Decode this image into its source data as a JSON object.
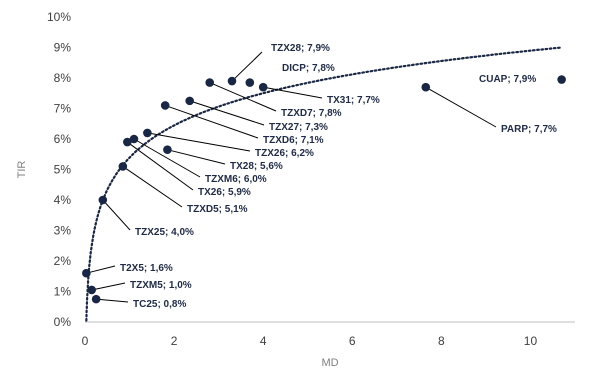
{
  "chart_data": {
    "type": "scatter",
    "xlabel": "MD",
    "ylabel": "TIR",
    "xlim": [
      0,
      11
    ],
    "ylim": [
      0,
      10
    ],
    "x_ticks": [
      "0",
      "2",
      "4",
      "6",
      "8",
      "10"
    ],
    "y_ticks": [
      "0%",
      "1%",
      "2%",
      "3%",
      "4%",
      "5%",
      "6%",
      "7%",
      "8%",
      "9%",
      "10%"
    ],
    "grid": false,
    "legend": "none",
    "trendline": {
      "type": "logarithmic",
      "style": "dotted",
      "color": "#1a2744"
    },
    "points": [
      {
        "label": "TZX28; 7,9%",
        "x": 3.3,
        "y": 7.9
      },
      {
        "label": "DICP; 7,8%",
        "x": 3.7,
        "y": 7.85
      },
      {
        "label": "TX31; 7,7%",
        "x": 4.0,
        "y": 7.7
      },
      {
        "label": "TZXD7; 7,8%",
        "x": 2.8,
        "y": 7.85
      },
      {
        "label": "TZX27; 7,3%",
        "x": 2.35,
        "y": 7.25
      },
      {
        "label": "TZXD6; 7,1%",
        "x": 1.8,
        "y": 7.1
      },
      {
        "label": "TZX26; 6,2%",
        "x": 1.4,
        "y": 6.2
      },
      {
        "label": "TX28; 5,6%",
        "x": 1.85,
        "y": 5.65
      },
      {
        "label": "TZXM6; 6,0%",
        "x": 1.1,
        "y": 6.0
      },
      {
        "label": "TX26; 5,9%",
        "x": 0.95,
        "y": 5.9
      },
      {
        "label": "TZXD5; 5,1%",
        "x": 0.85,
        "y": 5.1
      },
      {
        "label": "TZX25; 4,0%",
        "x": 0.4,
        "y": 4.0
      },
      {
        "label": "T2X5; 1,6%",
        "x": 0.03,
        "y": 1.6
      },
      {
        "label": "TZXM5; 1,0%",
        "x": 0.15,
        "y": 1.05
      },
      {
        "label": "TC25; 0,8%",
        "x": 0.25,
        "y": 0.75
      },
      {
        "label": "CUAP; 7,9%",
        "x": 10.7,
        "y": 7.95
      },
      {
        "label": "PARP; 7,7%",
        "x": 7.65,
        "y": 7.7
      }
    ]
  }
}
